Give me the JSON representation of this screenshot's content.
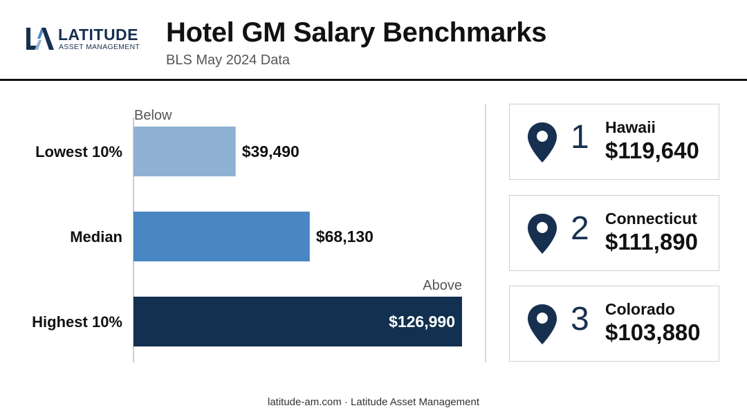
{
  "brand": {
    "name": "LATITUDE",
    "tagline": "ASSET MANAGEMENT"
  },
  "header": {
    "title": "Hotel GM Salary Benchmarks",
    "subtitle": "BLS May 2024 Data"
  },
  "chart_data": {
    "type": "bar",
    "orientation": "horizontal",
    "categories": [
      "Lowest 10%",
      "Median",
      "Highest 10%"
    ],
    "values": [
      39490,
      68130,
      126990
    ],
    "value_labels": [
      "$39,490",
      "$68,130",
      "$126,990"
    ],
    "colors": [
      "#8fb1d3",
      "#4a86c2",
      "#12304f"
    ],
    "annotations": {
      "below": "Below",
      "above": "Above"
    },
    "xlim": [
      0,
      126990
    ]
  },
  "top_states": [
    {
      "rank": "1",
      "state": "Hawaii",
      "salary": "$119,640"
    },
    {
      "rank": "2",
      "state": "Connecticut",
      "salary": "$111,890"
    },
    {
      "rank": "3",
      "state": "Colorado",
      "salary": "$103,880"
    }
  ],
  "colors": {
    "navy": "#17304f",
    "pin": "#17304f"
  },
  "icons": {
    "state_marker": "map-pin-icon"
  },
  "footer": {
    "text": "latitude-am.com · Latitude Asset Management"
  }
}
